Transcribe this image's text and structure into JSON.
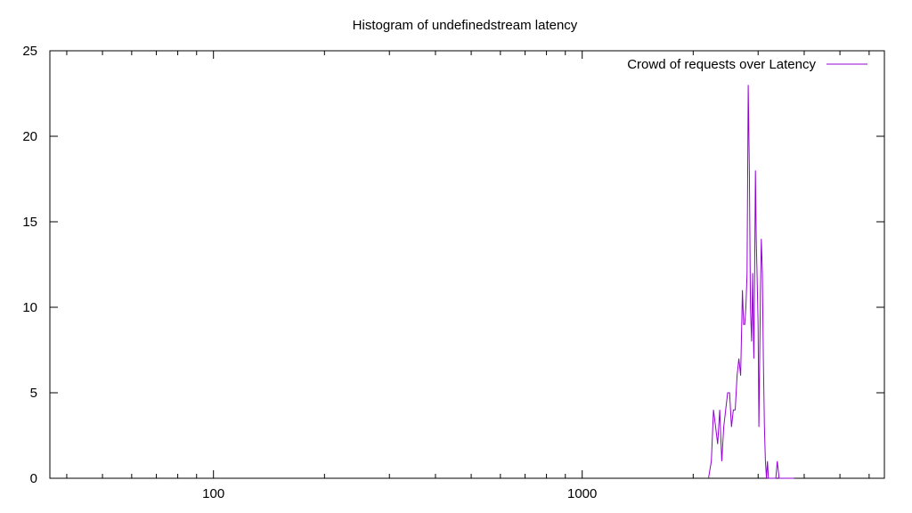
{
  "chart_data": {
    "type": "line",
    "title": "Histogram of undefinedstream latency",
    "xlabel": "",
    "ylabel": "",
    "xscale": "log",
    "xlim": [
      36,
      6600
    ],
    "ylim": [
      0,
      25
    ],
    "grid": false,
    "legend_position": "top-right",
    "x_tick_labels": [
      "100",
      "1000"
    ],
    "x_tick_values": [
      100,
      1000
    ],
    "y_tick_labels": [
      "0",
      "5",
      "10",
      "15",
      "20",
      "25"
    ],
    "y_tick_values": [
      0,
      5,
      10,
      15,
      20,
      25
    ],
    "colors": {
      "series": "#9400d3",
      "axis": "#000000"
    },
    "series": [
      {
        "name": "Crowd of requests over Latency",
        "x": [
          2200,
          2240,
          2270,
          2300,
          2330,
          2360,
          2390,
          2420,
          2450,
          2480,
          2510,
          2540,
          2570,
          2600,
          2630,
          2660,
          2690,
          2720,
          2740,
          2760,
          2780,
          2800,
          2820,
          2840,
          2860,
          2880,
          2900,
          2910,
          2920,
          2935,
          2950,
          2965,
          2980,
          3000,
          3015,
          3030,
          3045,
          3060,
          3080,
          3100,
          3120,
          3140,
          3160,
          3180,
          3200,
          3220,
          3240,
          3260,
          3280,
          3300,
          3320,
          3350,
          3380,
          3420,
          3460,
          3500,
          3550,
          3600,
          3650,
          3700,
          3750
        ],
        "y": [
          0,
          1,
          4,
          3,
          2,
          4,
          1,
          3,
          4,
          5,
          5,
          3,
          4,
          4,
          6,
          7,
          6,
          11,
          9,
          9,
          10,
          12,
          23,
          18,
          10,
          8,
          12,
          9,
          7,
          12,
          18,
          14,
          12,
          9,
          3,
          7,
          11,
          14,
          12,
          7,
          3,
          1,
          0,
          1,
          0,
          0,
          0,
          0,
          0,
          0,
          0,
          0,
          1,
          0,
          0,
          0,
          0,
          0,
          0,
          0,
          0
        ]
      }
    ]
  }
}
